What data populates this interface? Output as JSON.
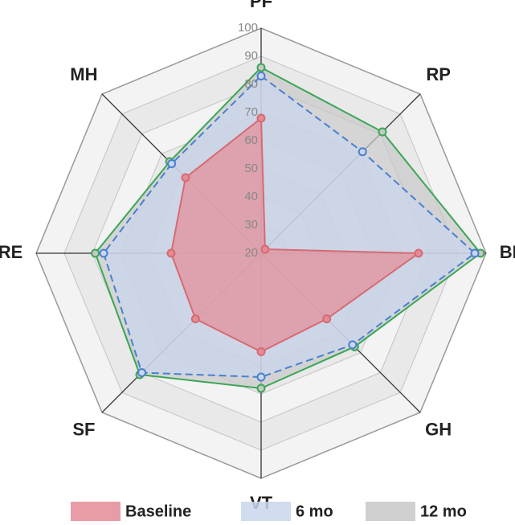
{
  "chart_data": {
    "type": "radar",
    "categories": [
      "PF",
      "RP",
      "BP",
      "GH",
      "VT",
      "SF",
      "RE",
      "MH"
    ],
    "rlim": [
      20,
      100
    ],
    "rticks": [
      20,
      30,
      40,
      50,
      60,
      70,
      80,
      90,
      100
    ],
    "series": [
      {
        "name": "12 mo",
        "color": "#3aa655",
        "fill": "#c8c8c8",
        "dashed": false,
        "values": [
          86,
          81,
          98,
          67,
          68,
          81,
          79,
          66
        ]
      },
      {
        "name": "6 mo",
        "color": "#4a7fd0",
        "fill": "#c9d6ec",
        "dashed": true,
        "values": [
          83,
          71,
          96,
          66,
          64,
          80,
          76,
          65
        ]
      },
      {
        "name": "Baseline",
        "color": "#d66a74",
        "fill": "#e48b95",
        "dashed": false,
        "values": [
          68,
          22,
          76,
          53,
          55,
          53,
          52,
          58
        ]
      }
    ],
    "legend_order": [
      2,
      1,
      0
    ]
  }
}
